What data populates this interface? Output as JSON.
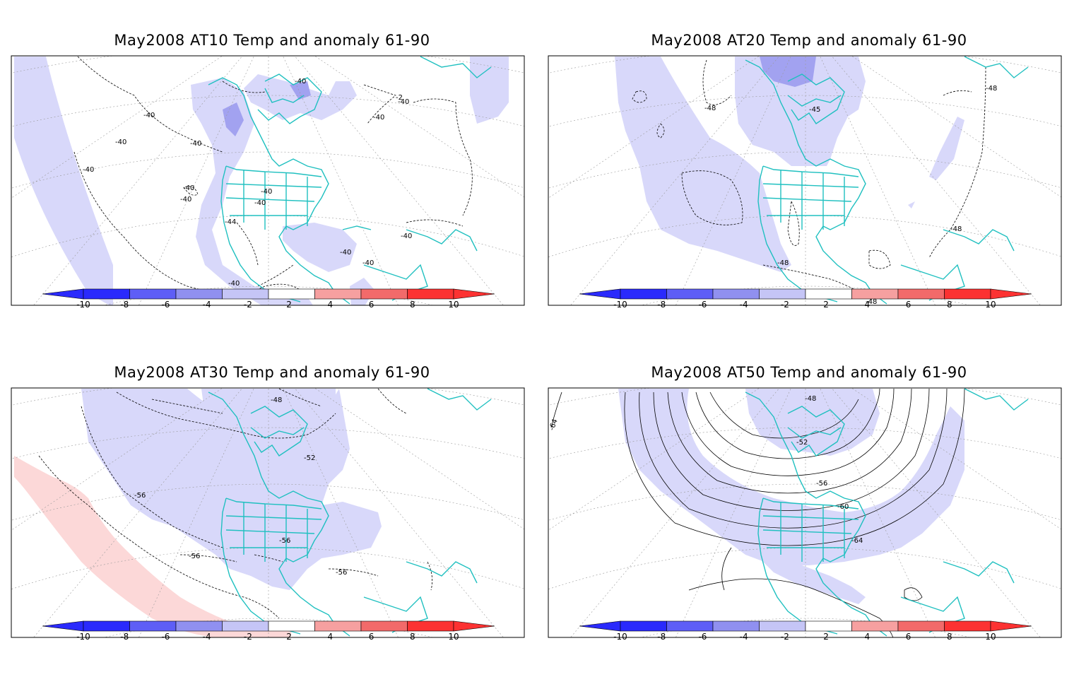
{
  "anomaly_colorbar": {
    "tick_labels": [
      "-10",
      "-8",
      "-6",
      "-4",
      "-2",
      "2",
      "4",
      "6",
      "8",
      "10"
    ],
    "colors": [
      "#2a2afc",
      "#5e5ef6",
      "#9090f0",
      "#c5c5f6",
      "#ffffff",
      "#fcd6d6",
      "#f6a0a0",
      "#f26a6a",
      "#fc3232"
    ]
  },
  "map_colors": {
    "coast": "#20c0c0",
    "contour": "#000000",
    "grid": "#9a9a9a",
    "anom_neg_2_4": "#d8d8fa",
    "anom_neg_4_6": "#a2a2f0",
    "anom_pos_2_4": "#fcd8d8"
  },
  "panels": [
    {
      "title": "May2008 AT10 Temp and anomaly 61-90",
      "contour_labels": [
        "-40",
        "-40",
        "-40",
        "-40",
        "-40",
        "-40",
        "-40",
        "-40",
        "-40",
        "-40",
        "-40",
        "-40",
        "-2",
        "-40",
        "-40",
        "-44",
        "-40"
      ]
    },
    {
      "title": "May2008 AT20 Temp and anomaly 61-90",
      "contour_labels": [
        "-48",
        "-45",
        "-48",
        "-48",
        "-48",
        "-48"
      ]
    },
    {
      "title": "May2008 AT30 Temp and anomaly 61-90",
      "contour_labels": [
        "-48",
        "-52",
        "-56",
        "-56",
        "-56",
        "-56"
      ]
    },
    {
      "title": "May2008 AT50 Temp and anomaly 61-90",
      "contour_labels": [
        "-48",
        "-52",
        "-56",
        "-60",
        "-64",
        "-64"
      ]
    }
  ]
}
